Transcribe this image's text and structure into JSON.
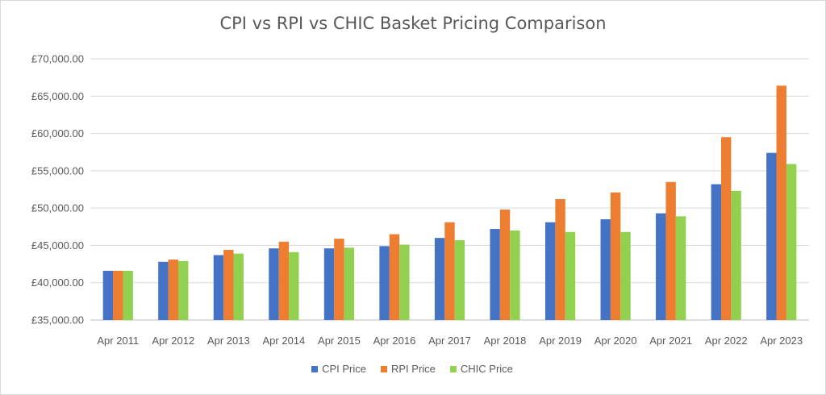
{
  "chart_data": {
    "type": "bar",
    "title": "CPI vs RPI vs CHIC Basket Pricing Comparison",
    "xlabel": "",
    "ylabel": "",
    "ylim": [
      35000,
      70000
    ],
    "y_ticks": [
      {
        "value": 35000,
        "label": "£35,000.00"
      },
      {
        "value": 40000,
        "label": "£40,000.00"
      },
      {
        "value": 45000,
        "label": "£45,000.00"
      },
      {
        "value": 50000,
        "label": "£50,000.00"
      },
      {
        "value": 55000,
        "label": "£55,000.00"
      },
      {
        "value": 60000,
        "label": "£60,000.00"
      },
      {
        "value": 65000,
        "label": "£65,000.00"
      },
      {
        "value": 70000,
        "label": "£70,000.00"
      }
    ],
    "grid": true,
    "legend_position": "bottom",
    "categories": [
      "Apr 2011",
      "Apr 2012",
      "Apr 2013",
      "Apr 2014",
      "Apr 2015",
      "Apr 2016",
      "Apr 2017",
      "Apr 2018",
      "Apr 2019",
      "Apr 2020",
      "Apr 2021",
      "Apr 2022",
      "Apr 2023"
    ],
    "series": [
      {
        "name": "CPI Price",
        "color": "#4472c4",
        "values": [
          41600,
          42800,
          43700,
          44600,
          44600,
          44900,
          46000,
          47200,
          48100,
          48500,
          49300,
          53200,
          57400
        ]
      },
      {
        "name": "RPI Price",
        "color": "#ed7d31",
        "values": [
          41600,
          43100,
          44400,
          45500,
          45900,
          46500,
          48100,
          49800,
          51200,
          52100,
          53500,
          59500,
          66400
        ]
      },
      {
        "name": "CHIC Price",
        "color": "#92d050",
        "values": [
          41600,
          42900,
          43900,
          44100,
          44700,
          45100,
          45700,
          47000,
          46800,
          46800,
          48900,
          52300,
          55900
        ]
      }
    ]
  }
}
